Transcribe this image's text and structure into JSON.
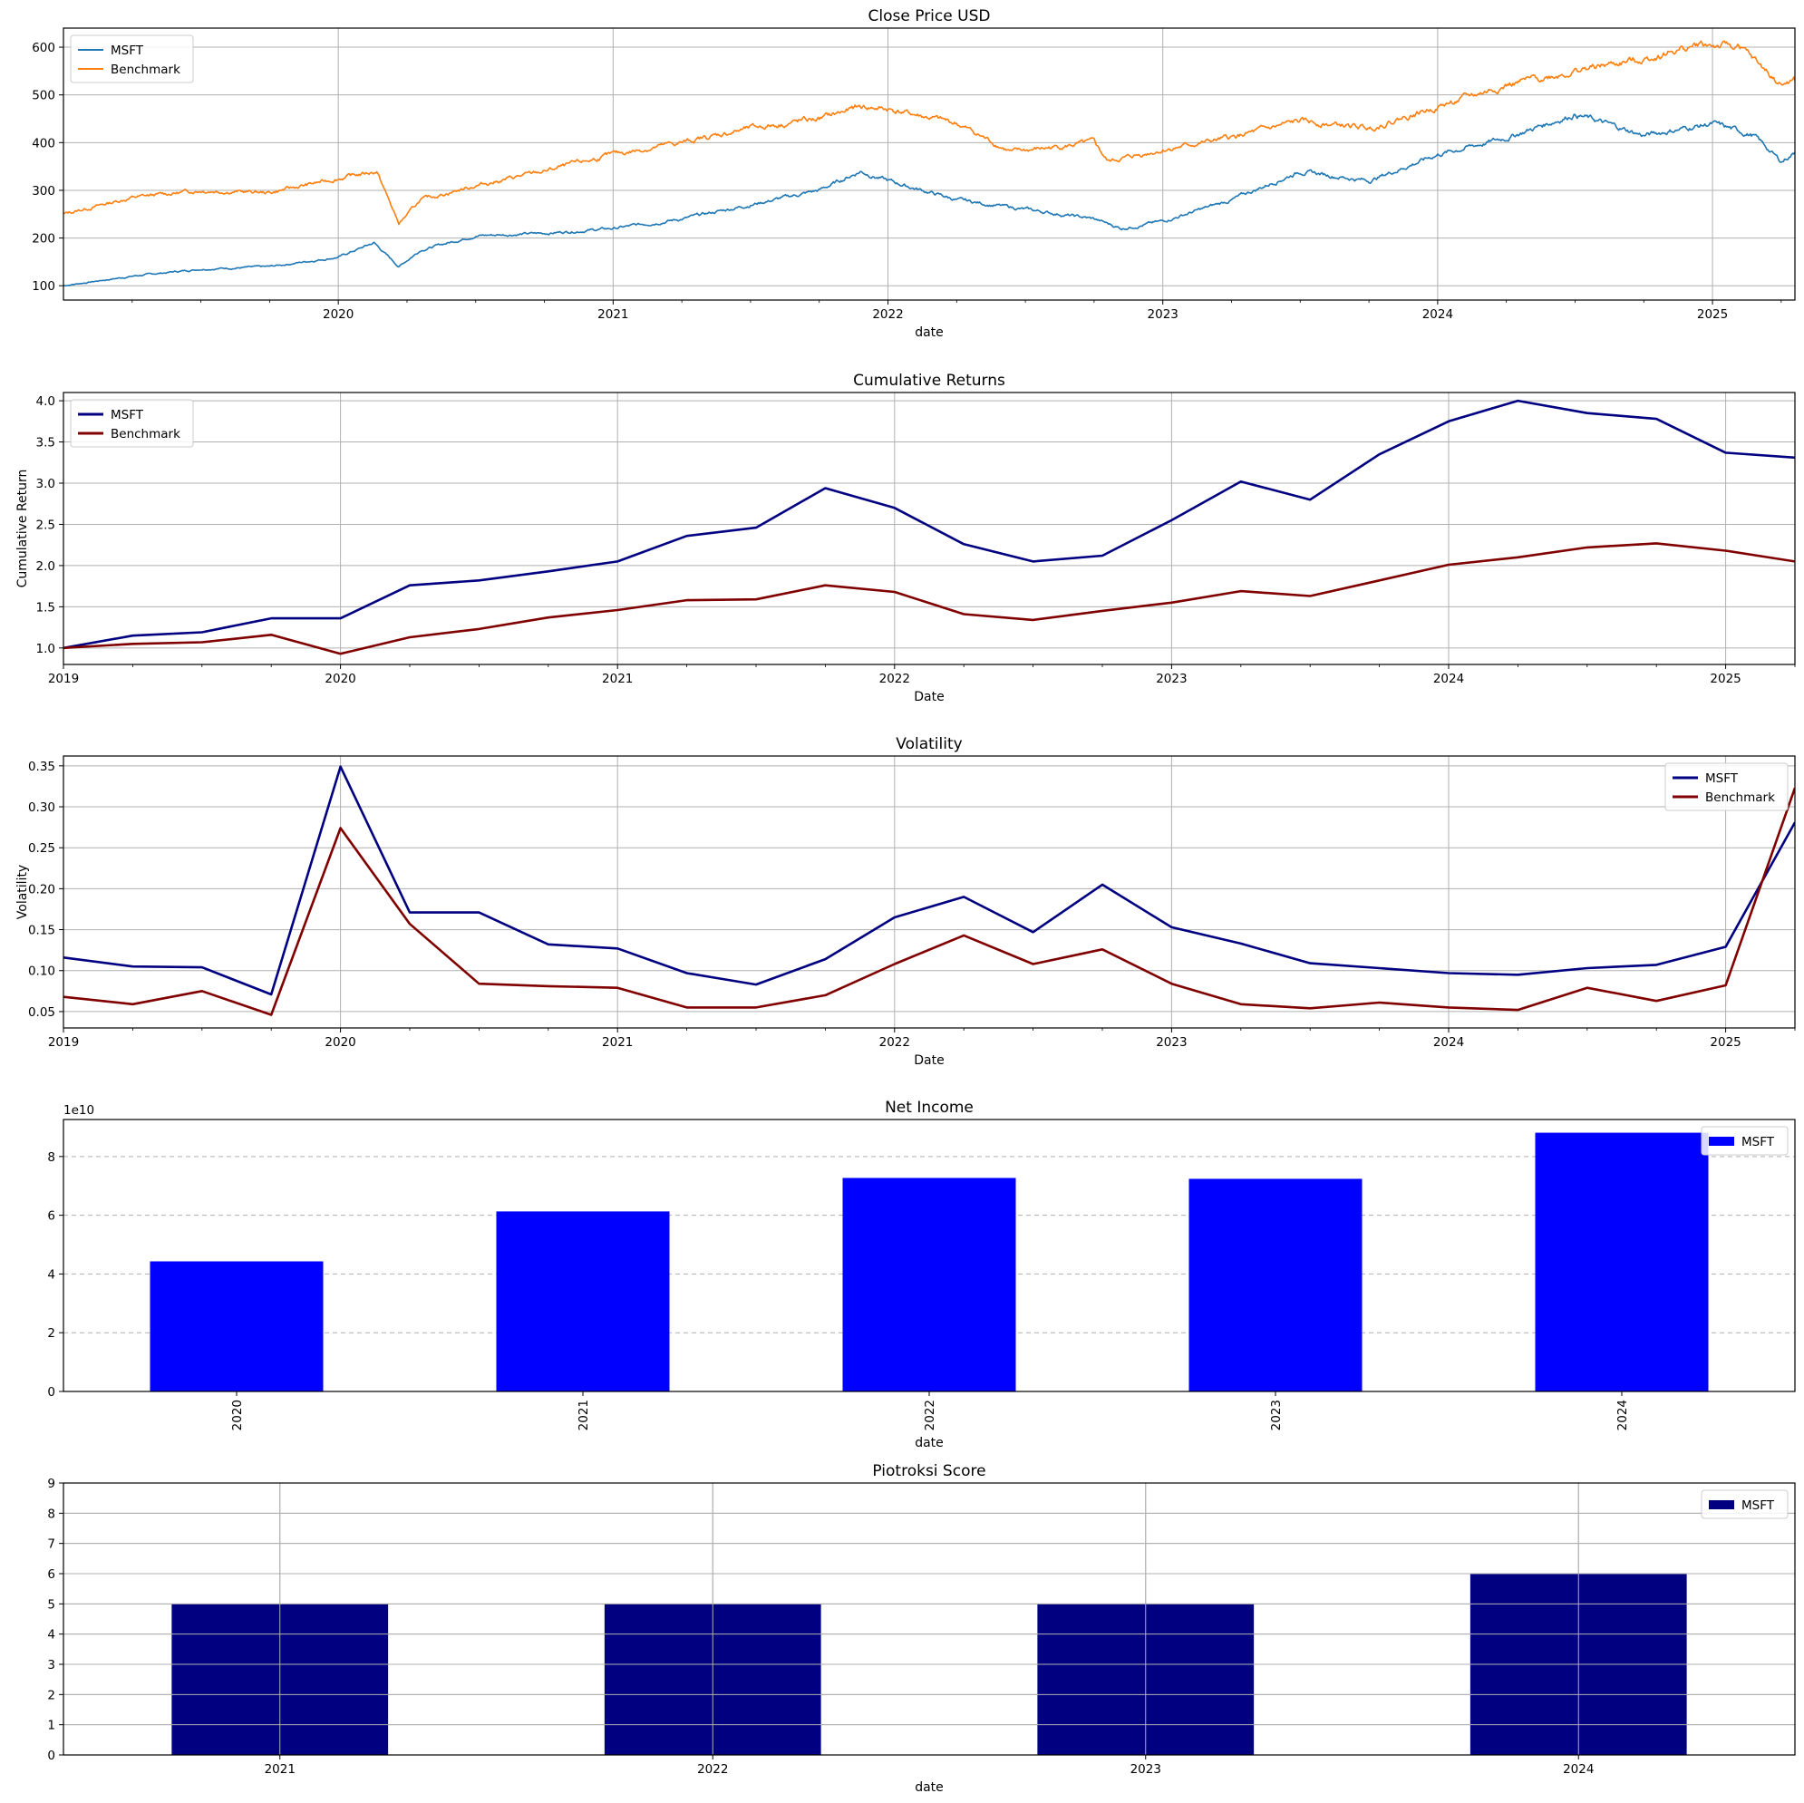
{
  "chart_data": [
    {
      "type": "line",
      "title": "Close Price USD",
      "xlabel": "date",
      "ylabel": "",
      "xlim": [
        2019.0,
        2025.3
      ],
      "ylim": [
        70,
        640
      ],
      "yticks": [
        100,
        200,
        300,
        400,
        500,
        600
      ],
      "xticks": [
        "2020",
        "2021",
        "2022",
        "2023",
        "2024",
        "2025"
      ],
      "grid": true,
      "legend_position": "upper-left",
      "series": [
        {
          "name": "MSFT",
          "color": "#1f77b4",
          "x": [
            2019.0,
            2019.25,
            2019.5,
            2019.75,
            2020.0,
            2020.13,
            2020.22,
            2020.3,
            2020.5,
            2020.75,
            2021.0,
            2021.25,
            2021.5,
            2021.75,
            2021.9,
            2022.0,
            2022.25,
            2022.5,
            2022.75,
            2022.85,
            2023.0,
            2023.25,
            2023.5,
            2023.75,
            2024.0,
            2024.25,
            2024.5,
            2024.75,
            2025.0,
            2025.15,
            2025.25,
            2025.3
          ],
          "values": [
            100,
            120,
            135,
            140,
            160,
            190,
            140,
            175,
            205,
            210,
            220,
            240,
            270,
            300,
            340,
            320,
            280,
            260,
            240,
            220,
            235,
            280,
            340,
            320,
            375,
            410,
            460,
            415,
            440,
            415,
            360,
            380
          ]
        },
        {
          "name": "Benchmark",
          "color": "#ff7f0e",
          "x": [
            2019.0,
            2019.25,
            2019.5,
            2019.75,
            2020.0,
            2020.14,
            2020.22,
            2020.3,
            2020.5,
            2020.75,
            2021.0,
            2021.25,
            2021.5,
            2021.75,
            2021.9,
            2022.0,
            2022.25,
            2022.45,
            2022.75,
            2022.8,
            2023.0,
            2023.25,
            2023.5,
            2023.75,
            2024.0,
            2024.25,
            2024.5,
            2024.75,
            2024.95,
            2025.1,
            2025.25,
            2025.3
          ],
          "values": [
            250,
            285,
            300,
            295,
            325,
            340,
            230,
            280,
            310,
            340,
            375,
            400,
            430,
            450,
            475,
            470,
            440,
            380,
            400,
            360,
            385,
            410,
            445,
            430,
            475,
            520,
            550,
            575,
            605,
            600,
            520,
            530
          ]
        }
      ]
    },
    {
      "type": "line",
      "title": "Cumulative Returns",
      "xlabel": "Date",
      "ylabel": "Cumulative Return",
      "xlim": [
        2019.0,
        2025.25
      ],
      "ylim": [
        0.8,
        4.1
      ],
      "yticks": [
        1.0,
        1.5,
        2.0,
        2.5,
        3.0,
        3.5,
        4.0
      ],
      "ytick_labels": [
        "1.0",
        "1.5",
        "2.0",
        "2.5",
        "3.0",
        "3.5",
        "4.0"
      ],
      "xticks": [
        "2019",
        "2020",
        "2021",
        "2022",
        "2023",
        "2024",
        "2025"
      ],
      "grid": true,
      "legend_position": "upper-left",
      "x": [
        2019.0,
        2019.25,
        2019.5,
        2019.75,
        2020.0,
        2020.25,
        2020.5,
        2020.75,
        2021.0,
        2021.25,
        2021.5,
        2021.75,
        2022.0,
        2022.25,
        2022.5,
        2022.75,
        2023.0,
        2023.25,
        2023.5,
        2023.75,
        2024.0,
        2024.25,
        2024.5,
        2024.75,
        2025.0,
        2025.25
      ],
      "series": [
        {
          "name": "MSFT",
          "color": "#000080",
          "values": [
            1.0,
            1.15,
            1.19,
            1.36,
            1.36,
            1.76,
            1.82,
            1.93,
            2.05,
            2.36,
            2.46,
            2.94,
            2.7,
            2.26,
            2.05,
            2.12,
            2.55,
            3.02,
            2.8,
            3.35,
            3.75,
            4.0,
            3.85,
            3.78,
            3.37,
            3.31
          ]
        },
        {
          "name": "Benchmark",
          "color": "#800000",
          "values": [
            1.0,
            1.05,
            1.07,
            1.16,
            0.93,
            1.13,
            1.23,
            1.37,
            1.46,
            1.58,
            1.59,
            1.76,
            1.68,
            1.41,
            1.34,
            1.45,
            1.55,
            1.69,
            1.63,
            1.82,
            2.01,
            2.1,
            2.22,
            2.27,
            2.18,
            2.05
          ]
        }
      ]
    },
    {
      "type": "line",
      "title": "Volatility",
      "xlabel": "Date",
      "ylabel": "Volatility",
      "xlim": [
        2019.0,
        2025.25
      ],
      "ylim": [
        0.03,
        0.362
      ],
      "yticks": [
        0.05,
        0.1,
        0.15,
        0.2,
        0.25,
        0.3,
        0.35
      ],
      "ytick_labels": [
        "0.05",
        "0.10",
        "0.15",
        "0.20",
        "0.25",
        "0.30",
        "0.35"
      ],
      "xticks": [
        "2019",
        "2020",
        "2021",
        "2022",
        "2023",
        "2024",
        "2025"
      ],
      "grid": true,
      "legend_position": "upper-right",
      "x": [
        2019.0,
        2019.25,
        2019.5,
        2019.75,
        2020.0,
        2020.25,
        2020.5,
        2020.75,
        2021.0,
        2021.25,
        2021.5,
        2021.75,
        2022.0,
        2022.25,
        2022.5,
        2022.75,
        2023.0,
        2023.25,
        2023.5,
        2023.75,
        2024.0,
        2024.25,
        2024.5,
        2024.75,
        2025.0,
        2025.25
      ],
      "series": [
        {
          "name": "MSFT",
          "color": "#000080",
          "values": [
            0.116,
            0.105,
            0.104,
            0.071,
            0.349,
            0.171,
            0.171,
            0.132,
            0.127,
            0.097,
            0.083,
            0.114,
            0.165,
            0.19,
            0.147,
            0.205,
            0.153,
            0.133,
            0.109,
            0.103,
            0.097,
            0.095,
            0.103,
            0.107,
            0.129,
            0.281
          ]
        },
        {
          "name": "Benchmark",
          "color": "#800000",
          "values": [
            0.068,
            0.059,
            0.075,
            0.046,
            0.274,
            0.157,
            0.084,
            0.081,
            0.079,
            0.055,
            0.055,
            0.07,
            0.108,
            0.143,
            0.108,
            0.126,
            0.084,
            0.059,
            0.054,
            0.061,
            0.055,
            0.052,
            0.079,
            0.063,
            0.082,
            0.323
          ]
        }
      ]
    },
    {
      "type": "bar",
      "title": "Net Income",
      "xlabel": "date",
      "ylabel": "",
      "offset_label": "1e10",
      "categories": [
        "2020",
        "2021",
        "2022",
        "2023",
        "2024"
      ],
      "ylim": [
        0,
        92600000000.0
      ],
      "yticks": [
        0,
        20000000000.0,
        40000000000.0,
        60000000000.0,
        80000000000.0
      ],
      "ytick_labels": [
        "0",
        "2",
        "4",
        "6",
        "8"
      ],
      "grid": "y-dashed",
      "legend_position": "upper-right",
      "series": [
        {
          "name": "MSFT",
          "color": "#0000ff",
          "values": [
            44300000000.0,
            61300000000.0,
            72700000000.0,
            72400000000.0,
            88100000000.0
          ]
        }
      ]
    },
    {
      "type": "bar",
      "title": "Piotroksi Score",
      "xlabel": "date",
      "ylabel": "",
      "categories": [
        "2021",
        "2022",
        "2023",
        "2024"
      ],
      "ylim": [
        0,
        9
      ],
      "yticks": [
        0,
        1,
        2,
        3,
        4,
        5,
        6,
        7,
        8,
        9
      ],
      "grid": true,
      "legend_position": "upper-right",
      "series": [
        {
          "name": "MSFT",
          "color": "#000080",
          "values": [
            5,
            5,
            5,
            6
          ]
        }
      ]
    }
  ]
}
